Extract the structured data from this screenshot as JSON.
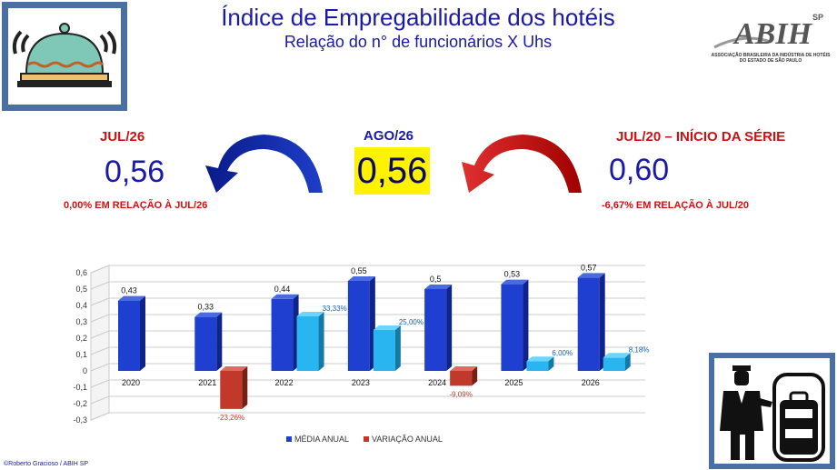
{
  "header": {
    "title": "Índice de Empregabilidade dos hotéis",
    "subtitle": "Relação do n° de funcionários X Uhs"
  },
  "logo": {
    "mark": "ABIH",
    "sp": "SP",
    "caption": "ASSOCIAÇÃO BRASILEIRA DA INDÚSTRIA DE HOTÉIS DO ESTADO DE SÃO PAULO"
  },
  "kpis": {
    "left": {
      "label": "JUL/26",
      "value": "0,56",
      "note": "0,00% EM RELAÇÃO À JUL/26"
    },
    "middle": {
      "label": "AGO/26",
      "value": "0,56"
    },
    "right": {
      "label": "JUL/20 – INÍCIO DA SÉRIE",
      "value": "0,60",
      "note": "-6,67% EM RELAÇÃO À JUL/20"
    }
  },
  "icons": {
    "top_left": "food-cloche-icon",
    "bottom_right": "bellboy-luggage-icon",
    "arrow_left": "curved-arrow-left-icon",
    "arrow_right": "curved-arrow-left-red-icon"
  },
  "colors": {
    "primary": "#1a1aa6",
    "bar_media": "#1f3fd0",
    "bar_var_pos": "#29b6f0",
    "bar_var_neg": "#c0392b",
    "highlight": "#fff200",
    "accent_red": "#d01010"
  },
  "credit": "©Roberto Gracioso / ABIH SP",
  "chart_data": {
    "type": "bar",
    "categories": [
      "2020",
      "2021",
      "2022",
      "2023",
      "2024",
      "2025",
      "2026"
    ],
    "series": [
      {
        "name": "MÉDIA ANUAL",
        "values": [
          0.43,
          0.33,
          0.44,
          0.55,
          0.5,
          0.53,
          0.57
        ],
        "labels": [
          "0,43",
          "0,33",
          "0,44",
          "0,55",
          "0,5",
          "0,53",
          "0,57"
        ]
      },
      {
        "name": "VARIAÇÃO ANUAL",
        "values": [
          null,
          -0.2326,
          0.3333,
          0.25,
          -0.0909,
          0.06,
          0.0818
        ],
        "labels": [
          "",
          "-23,26%",
          "33,33%",
          "25,00%",
          "-9,09%",
          "6,00%",
          "8,18%"
        ]
      }
    ],
    "ylim": [
      -0.3,
      0.6
    ],
    "yticks": [
      "-0,3",
      "-0,2",
      "-0,1",
      "0",
      "0,1",
      "0,2",
      "0,3",
      "0,4",
      "0,5",
      "0,6"
    ],
    "grid": true,
    "legend": "bottom"
  }
}
